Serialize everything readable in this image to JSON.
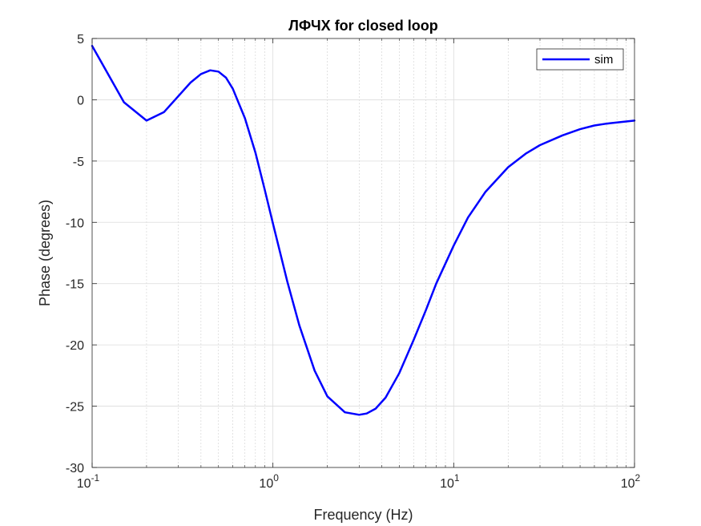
{
  "chart_data": {
    "type": "line",
    "title": "ЛФЧХ for closed loop",
    "xlabel": "Frequency (Hz)",
    "ylabel": "Phase (degrees)",
    "xscale": "log",
    "xlim": [
      0.1,
      100
    ],
    "ylim": [
      -30,
      5
    ],
    "grid": true,
    "legend_position": "top-right",
    "x_ticks": [
      {
        "value": 0.1,
        "base": "10",
        "exp": "-1"
      },
      {
        "value": 1,
        "base": "10",
        "exp": "0"
      },
      {
        "value": 10,
        "base": "10",
        "exp": "1"
      },
      {
        "value": 100,
        "base": "10",
        "exp": "2"
      }
    ],
    "y_ticks": [
      5,
      0,
      -5,
      -10,
      -15,
      -20,
      -25,
      -30
    ],
    "series": [
      {
        "name": "sim",
        "color": "#0000ff",
        "x": [
          0.1,
          0.15,
          0.2,
          0.25,
          0.3,
          0.35,
          0.4,
          0.45,
          0.5,
          0.55,
          0.6,
          0.7,
          0.8,
          0.9,
          1.0,
          1.2,
          1.4,
          1.7,
          2.0,
          2.5,
          3.0,
          3.3,
          3.7,
          4.2,
          5,
          6,
          7,
          8,
          10,
          12,
          15,
          20,
          25,
          30,
          40,
          50,
          60,
          70,
          80,
          100
        ],
        "y": [
          4.4,
          -0.2,
          -1.7,
          -1.0,
          0.3,
          1.4,
          2.1,
          2.4,
          2.3,
          1.8,
          0.9,
          -1.5,
          -4.3,
          -7.3,
          -10.1,
          -14.8,
          -18.4,
          -22.1,
          -24.2,
          -25.5,
          -25.7,
          -25.6,
          -25.2,
          -24.3,
          -22.3,
          -19.6,
          -17.2,
          -15.0,
          -11.9,
          -9.6,
          -7.5,
          -5.5,
          -4.4,
          -3.7,
          -2.9,
          -2.4,
          -2.1,
          -1.95,
          -1.85,
          -1.7
        ]
      }
    ]
  }
}
